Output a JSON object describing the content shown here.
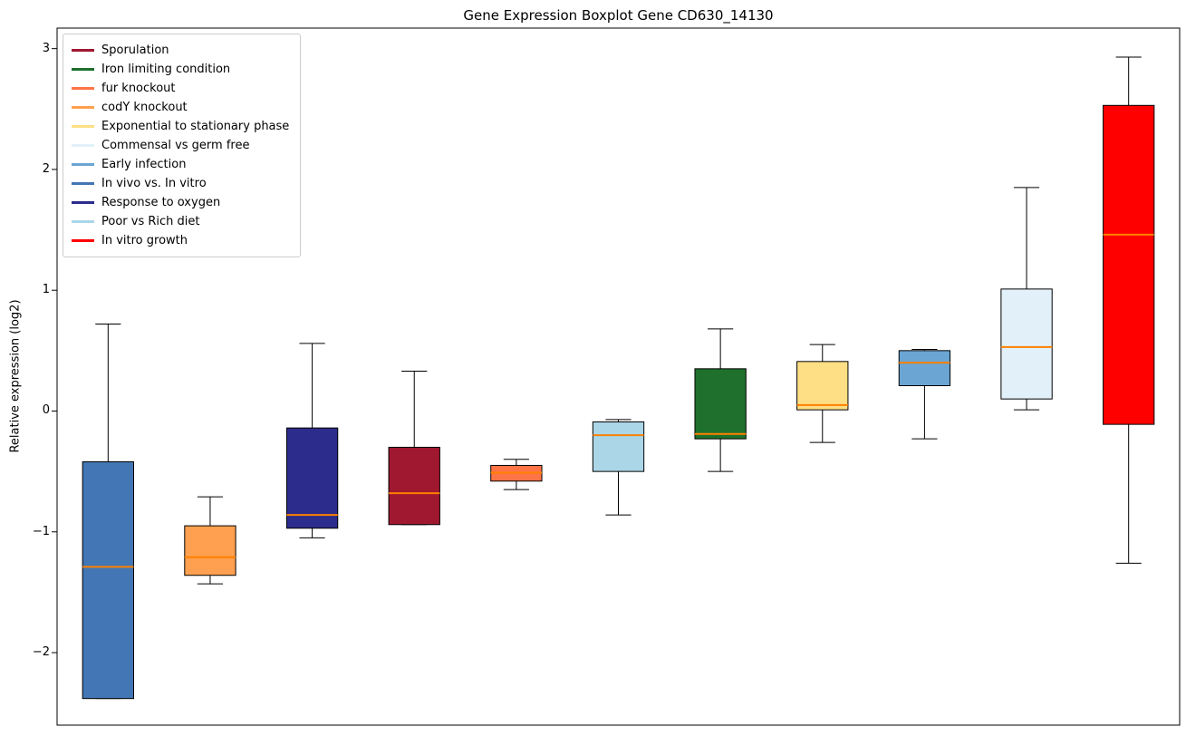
{
  "chart_data": {
    "type": "boxplot",
    "title": "Gene Expression Boxplot Gene CD630_14130",
    "ylabel": "Relative expression (log2)",
    "xlabel": "",
    "ylim": [
      -2.6,
      3.17
    ],
    "xlim": [
      0.5,
      11.5
    ],
    "box_width": 0.5,
    "grid": false,
    "yticks": [
      3,
      2,
      1,
      0,
      -1,
      -2
    ],
    "ytick_labels": [
      "3",
      "2",
      "1",
      "0",
      "−1",
      "−2"
    ],
    "legend": {
      "position": "upper left",
      "entries": [
        {
          "label": "Sporulation",
          "color": "#a01830"
        },
        {
          "label": "Iron limiting condition",
          "color": "#1e702c"
        },
        {
          "label": "fur knockout",
          "color": "#ff7446"
        },
        {
          "label": "codY knockout",
          "color": "#ffa050"
        },
        {
          "label": "Exponential to stationary phase",
          "color": "#ffdf85"
        },
        {
          "label": "Commensal vs germ free",
          "color": "#e2f1f9"
        },
        {
          "label": "Early infection",
          "color": "#6aa5d3"
        },
        {
          "label": "In vivo vs. In vitro",
          "color": "#4276b4"
        },
        {
          "label": "Response to oxygen",
          "color": "#2c2c8c"
        },
        {
          "label": "Poor vs Rich diet",
          "color": "#aad6e8"
        },
        {
          "label": "In vitro growth",
          "color": "#ff0000"
        }
      ]
    },
    "style": {
      "median_color": "#ff8000",
      "box_edge_color": "#000000",
      "whisker_color": "#000000",
      "frame_color": "#000000",
      "background": "#ffffff"
    },
    "series": [
      {
        "label": "In vivo vs. In vitro",
        "position": 1,
        "color": "#4276b4",
        "whisker_low": -2.38,
        "q1": -2.38,
        "median": -1.29,
        "q3": -0.42,
        "whisker_high": 0.72
      },
      {
        "label": "codY knockout",
        "position": 2,
        "color": "#ffa050",
        "whisker_low": -1.43,
        "q1": -1.36,
        "median": -1.21,
        "q3": -0.95,
        "whisker_high": -0.71
      },
      {
        "label": "Response to oxygen",
        "position": 3,
        "color": "#2c2c8c",
        "whisker_low": -1.05,
        "q1": -0.97,
        "median": -0.86,
        "q3": -0.14,
        "whisker_high": 0.56
      },
      {
        "label": "Sporulation",
        "position": 4,
        "color": "#a01830",
        "whisker_low": -0.94,
        "q1": -0.94,
        "median": -0.68,
        "q3": -0.3,
        "whisker_high": 0.33
      },
      {
        "label": "fur knockout",
        "position": 5,
        "color": "#ff7446",
        "whisker_low": -0.65,
        "q1": -0.58,
        "median": -0.51,
        "q3": -0.45,
        "whisker_high": -0.4
      },
      {
        "label": "Poor vs Rich diet",
        "position": 6,
        "color": "#aad6e8",
        "whisker_low": -0.86,
        "q1": -0.5,
        "median": -0.2,
        "q3": -0.09,
        "whisker_high": -0.07
      },
      {
        "label": "Iron limiting condition",
        "position": 7,
        "color": "#1e702c",
        "whisker_low": -0.5,
        "q1": -0.23,
        "median": -0.19,
        "q3": 0.35,
        "whisker_high": 0.68
      },
      {
        "label": "Exponential to stationary phase",
        "position": 8,
        "color": "#ffdf85",
        "whisker_low": -0.26,
        "q1": 0.01,
        "median": 0.05,
        "q3": 0.41,
        "whisker_high": 0.55
      },
      {
        "label": "Early infection",
        "position": 9,
        "color": "#6aa5d3",
        "whisker_low": -0.23,
        "q1": 0.21,
        "median": 0.4,
        "q3": 0.5,
        "whisker_high": 0.51
      },
      {
        "label": "Commensal vs germ free",
        "position": 10,
        "color": "#e2f1f9",
        "whisker_low": 0.01,
        "q1": 0.1,
        "median": 0.53,
        "q3": 1.01,
        "whisker_high": 1.85
      },
      {
        "label": "In vitro growth",
        "position": 11,
        "color": "#ff0000",
        "whisker_low": -1.26,
        "q1": -0.11,
        "median": 1.46,
        "q3": 2.53,
        "whisker_high": 2.93
      }
    ]
  }
}
